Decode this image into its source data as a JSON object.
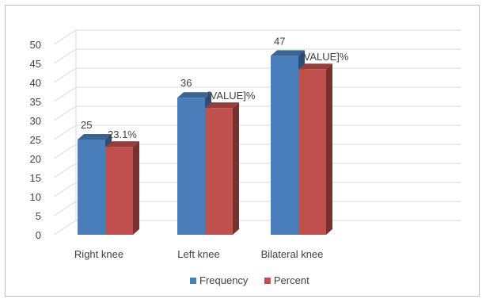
{
  "chart_data": {
    "type": "bar",
    "categories": [
      "Right knee",
      "Left knee",
      "Bilateral knee"
    ],
    "series": [
      {
        "name": "Frequency",
        "values": [
          25,
          36,
          47
        ],
        "labels": [
          "25",
          "36",
          "47"
        ],
        "color": "#4a7ebb"
      },
      {
        "name": "Percent",
        "values": [
          23.1,
          33.3,
          43.5
        ],
        "labels": [
          "23.1%",
          "[VALUE]%",
          "[VALUE]%"
        ],
        "color": "#c0504d"
      }
    ],
    "yticks": [
      0,
      5,
      10,
      15,
      20,
      25,
      30,
      35,
      40,
      45,
      50
    ],
    "ylim": [
      0,
      50
    ],
    "grid": true,
    "legend": "bottom",
    "style": "3d-column"
  }
}
